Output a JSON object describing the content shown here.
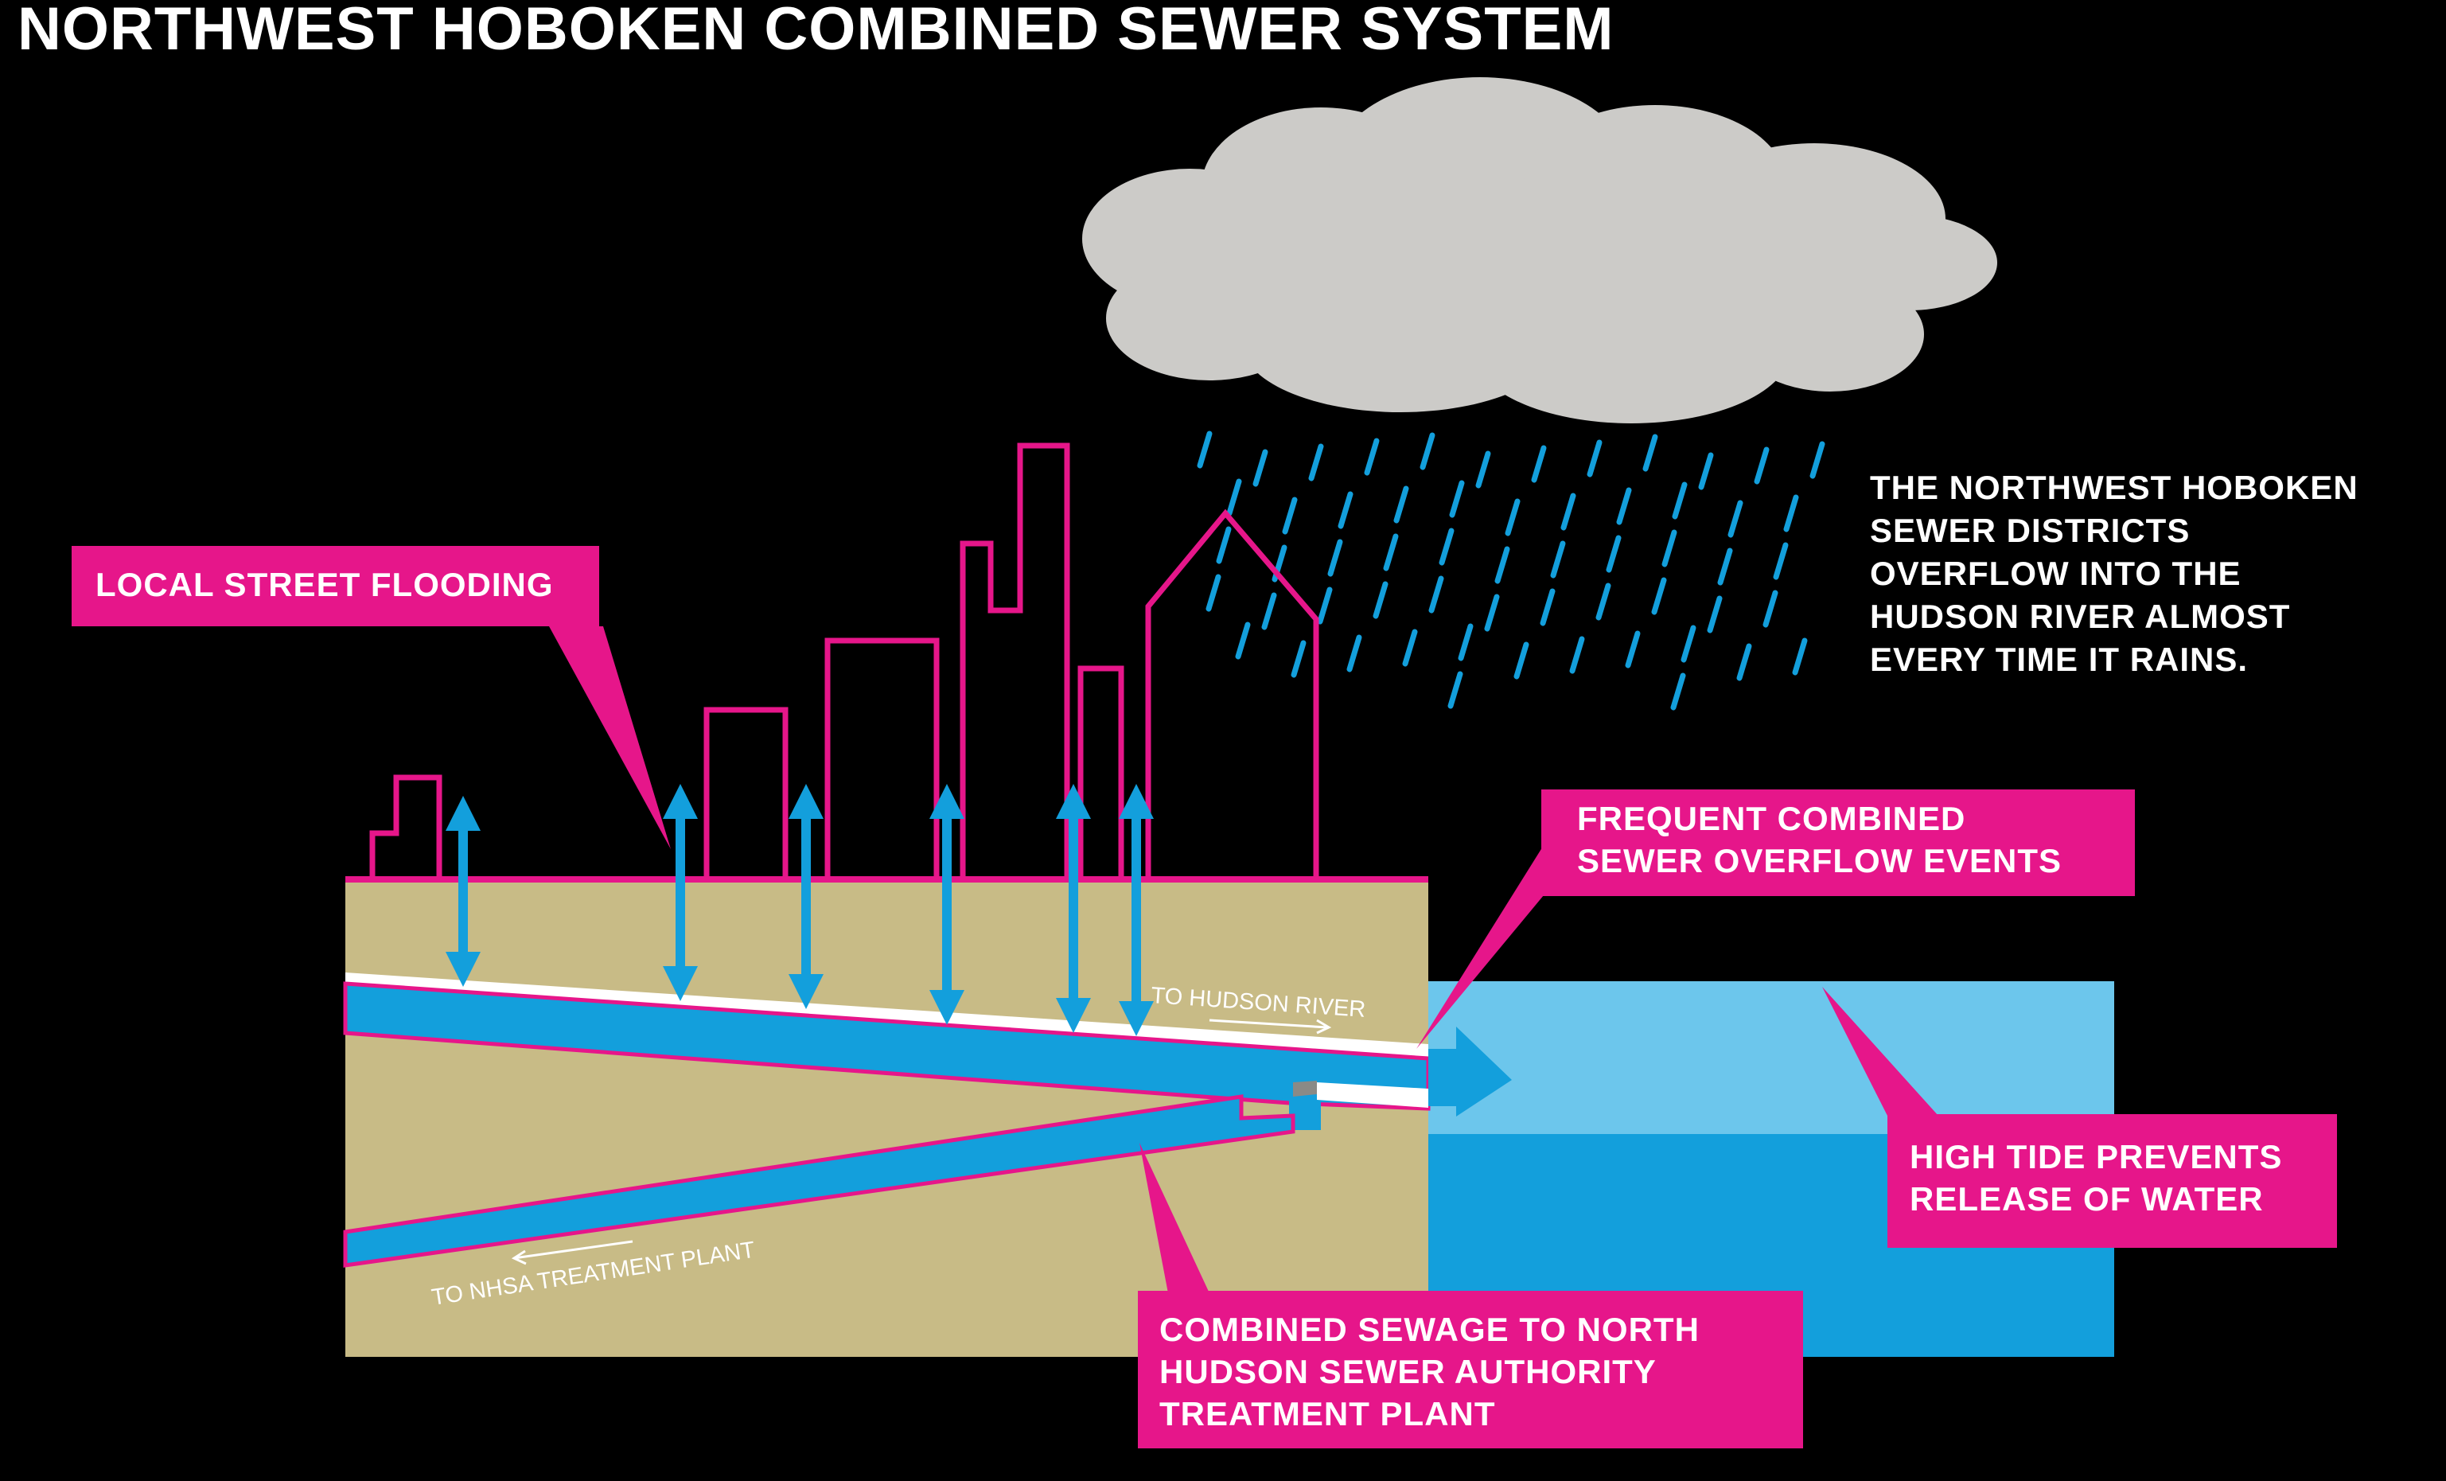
{
  "title": "NORTHWEST HOBOKEN COMBINED SEWER SYSTEM",
  "description": {
    "lines": [
      "THE NORTHWEST HOBOKEN",
      "SEWER DISTRICTS",
      "OVERFLOW INTO THE",
      "HUDSON RIVER ALMOST",
      "EVERY TIME IT RAINS."
    ]
  },
  "callouts": {
    "local_flooding": {
      "lines": [
        "LOCAL STREET FLOODING"
      ]
    },
    "overflow_events": {
      "lines": [
        "FREQUENT  COMBINED",
        "SEWER OVERFLOW EVENTS"
      ]
    },
    "high_tide": {
      "lines": [
        "HIGH TIDE PREVENTS",
        "RELEASE OF WATER"
      ]
    },
    "combined_sewage": {
      "lines": [
        "COMBINED SEWAGE TO NORTH",
        "HUDSON SEWER AUTHORITY",
        "TREATMENT PLANT"
      ]
    }
  },
  "pipe_labels": {
    "to_hudson": "TO HUDSON RIVER",
    "to_nhsa": "TO NHSA TREATMENT PLANT"
  },
  "colors": {
    "background": "#000000",
    "callout": "#e6168a",
    "ground": "#c8bb86",
    "pipe_water": "#139fdc",
    "river_light": "#6cc6ec",
    "river_dark": "#139fdc",
    "cloud": "#cccbc8",
    "rain": "#139fdc",
    "skyline": "#e6168a",
    "text": "#ffffff"
  }
}
